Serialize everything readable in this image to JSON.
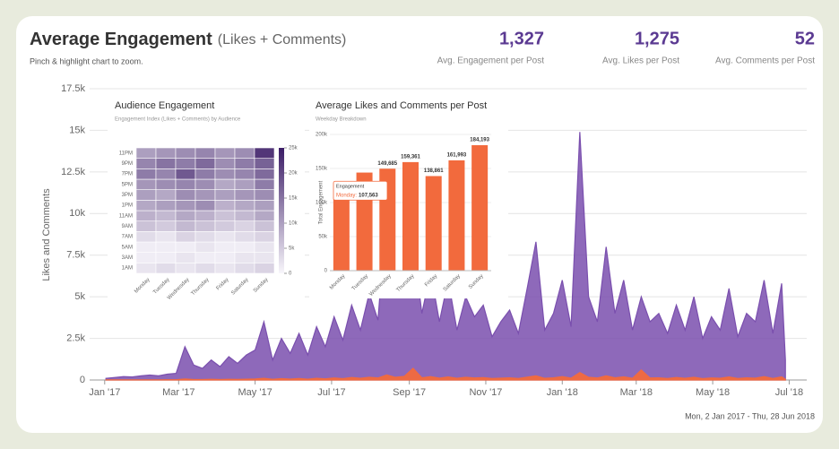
{
  "header": {
    "title": "Average Engagement",
    "title_note": "(Likes + Comments)",
    "subtitle": "Pinch & highlight chart to zoom."
  },
  "stats": [
    {
      "value": "1,327",
      "label": "Avg. Engagement per Post"
    },
    {
      "value": "1,275",
      "label": "Avg. Likes per Post"
    },
    {
      "value": "52",
      "label": "Avg. Comments per Post"
    }
  ],
  "footer": "Mon, 2 Jan 2017 - Thu, 28 Jun 2018",
  "chart_data": [
    {
      "type": "area",
      "ylabel": "Likes and Comments",
      "grid": true,
      "x": [
        "2017-01-02",
        "2017-01-09",
        "2017-01-16",
        "2017-01-23",
        "2017-01-30",
        "2017-02-06",
        "2017-02-13",
        "2017-02-20",
        "2017-02-27",
        "2017-03-06",
        "2017-03-13",
        "2017-03-20",
        "2017-03-27",
        "2017-04-03",
        "2017-04-10",
        "2017-04-17",
        "2017-04-24",
        "2017-05-01",
        "2017-05-08",
        "2017-05-15",
        "2017-05-22",
        "2017-05-29",
        "2017-06-05",
        "2017-06-12",
        "2017-06-19",
        "2017-06-26",
        "2017-07-03",
        "2017-07-10",
        "2017-07-17",
        "2017-07-24",
        "2017-07-31",
        "2017-08-07",
        "2017-08-14",
        "2017-08-21",
        "2017-08-28",
        "2017-09-04",
        "2017-09-11",
        "2017-09-18",
        "2017-09-25",
        "2017-10-02",
        "2017-10-09",
        "2017-10-16",
        "2017-10-23",
        "2017-10-30",
        "2017-11-06",
        "2017-11-13",
        "2017-11-20",
        "2017-11-27",
        "2017-12-04",
        "2017-12-11",
        "2017-12-18",
        "2017-12-25",
        "2018-01-01",
        "2018-01-08",
        "2018-01-15",
        "2018-01-22",
        "2018-01-29",
        "2018-02-05",
        "2018-02-12",
        "2018-02-19",
        "2018-02-26",
        "2018-03-05",
        "2018-03-12",
        "2018-03-19",
        "2018-03-26",
        "2018-04-02",
        "2018-04-09",
        "2018-04-16",
        "2018-04-23",
        "2018-04-30",
        "2018-05-07",
        "2018-05-14",
        "2018-05-21",
        "2018-05-28",
        "2018-06-04",
        "2018-06-11",
        "2018-06-18",
        "2018-06-25",
        "2018-06-28"
      ],
      "series": [
        {
          "color": "#7a4fae",
          "values": [
            100,
            150,
            200,
            180,
            250,
            300,
            250,
            350,
            400,
            2000,
            900,
            700,
            1200,
            800,
            1400,
            1000,
            1500,
            1800,
            3500,
            1200,
            2500,
            1600,
            2800,
            1500,
            3200,
            2000,
            3800,
            2400,
            4500,
            3000,
            5200,
            3600,
            10400,
            5000,
            7000,
            8400,
            4000,
            6500,
            3500,
            6000,
            3000,
            5000,
            3800,
            4500,
            2600,
            3500,
            4200,
            2800,
            5500,
            8300,
            3000,
            4000,
            6000,
            3200,
            14900,
            5000,
            3500,
            8000,
            4000,
            6000,
            3000,
            5000,
            3500,
            4000,
            2800,
            4500,
            3000,
            5000,
            2500,
            3800,
            3000,
            5500,
            2600,
            4000,
            3500,
            6000,
            2800,
            5800,
            1200
          ]
        },
        {
          "color": "#f26a3d",
          "values": [
            5,
            5,
            8,
            8,
            10,
            10,
            10,
            12,
            15,
            60,
            30,
            25,
            40,
            30,
            45,
            35,
            50,
            60,
            100,
            40,
            80,
            55,
            90,
            50,
            100,
            70,
            120,
            80,
            150,
            100,
            160,
            120,
            300,
            160,
            220,
            700,
            130,
            200,
            110,
            180,
            100,
            160,
            120,
            140,
            90,
            110,
            130,
            90,
            170,
            250,
            100,
            130,
            200,
            110,
            450,
            160,
            120,
            250,
            130,
            190,
            100,
            600,
            120,
            130,
            90,
            150,
            100,
            160,
            80,
            120,
            100,
            180,
            90,
            130,
            110,
            200,
            90,
            190,
            40
          ]
        }
      ],
      "xlim": [
        "2016-12-20",
        "2018-07-15"
      ],
      "xticks": [
        {
          "value": "2017-01-01",
          "label": "Jan '17"
        },
        {
          "value": "2017-03-01",
          "label": "Mar '17"
        },
        {
          "value": "2017-05-01",
          "label": "May '17"
        },
        {
          "value": "2017-07-01",
          "label": "Jul '17"
        },
        {
          "value": "2017-09-01",
          "label": "Sep '17"
        },
        {
          "value": "2017-11-01",
          "label": "Nov '17"
        },
        {
          "value": "2018-01-01",
          "label": "Jan '18"
        },
        {
          "value": "2018-03-01",
          "label": "Mar '18"
        },
        {
          "value": "2018-05-01",
          "label": "May '18"
        },
        {
          "value": "2018-07-01",
          "label": "Jul '18"
        }
      ],
      "ylim": [
        0,
        17500
      ],
      "yticks": [
        0,
        {
          "value": 2500,
          "label": "2.5k"
        },
        {
          "value": 5000,
          "label": "5k"
        },
        {
          "value": 7500,
          "label": "7.5k"
        },
        {
          "value": 10000,
          "label": "10k"
        },
        {
          "value": 12500,
          "label": "12.5k"
        },
        {
          "value": 15000,
          "label": "15k"
        },
        {
          "value": 17500,
          "label": "17.5k"
        }
      ]
    },
    {
      "type": "heatmap",
      "title": "Audience Engagement",
      "subtitle": "Engagement Index (Likes + Comments) by Audience",
      "categories": [
        "Monday",
        "Tuesday",
        "Wednesday",
        "Thursday",
        "Friday",
        "Saturday",
        "Sunday"
      ],
      "rows": [
        "1AM",
        "3AM",
        "5AM",
        "7AM",
        "9AM",
        "11AM",
        "1PM",
        "3PM",
        "5PM",
        "7PM",
        "9PM",
        "11PM"
      ],
      "values": [
        [
          2000,
          3000,
          2000,
          3000,
          2000,
          3000,
          4000
        ],
        [
          1000,
          1000,
          2000,
          1000,
          1000,
          2000,
          2000
        ],
        [
          1000,
          1000,
          1000,
          2000,
          1000,
          1000,
          2000
        ],
        [
          3000,
          2000,
          4000,
          3000,
          2000,
          3000,
          4000
        ],
        [
          6000,
          5000,
          7000,
          6000,
          5000,
          4000,
          6000
        ],
        [
          8000,
          7000,
          9000,
          8000,
          6000,
          7000,
          9000
        ],
        [
          9000,
          10000,
          11000,
          12000,
          8000,
          9000,
          10000
        ],
        [
          10000,
          9000,
          12000,
          11000,
          10000,
          11000,
          12000
        ],
        [
          11000,
          12000,
          13000,
          12000,
          9000,
          10000,
          14000
        ],
        [
          14000,
          13000,
          18000,
          14000,
          12000,
          13000,
          16000
        ],
        [
          13000,
          15000,
          14000,
          16000,
          12000,
          14000,
          17000
        ],
        [
          10000,
          11000,
          12000,
          13000,
          11000,
          12000,
          22000
        ]
      ],
      "colors": [
        "#f8f6fb",
        "#3b1c66"
      ],
      "clim": [
        0,
        25000
      ],
      "cticks": [
        0,
        {
          "value": 5000,
          "label": "5k"
        },
        {
          "value": 10000,
          "label": "10k"
        },
        {
          "value": 15000,
          "label": "15k"
        },
        {
          "value": 20000,
          "label": "20k"
        },
        {
          "value": 25000,
          "label": "25k"
        }
      ]
    },
    {
      "type": "bar",
      "title": "Average Likes and Comments per Post",
      "subtitle": "Weekday Breakdown",
      "ylabel": "Total Engagement",
      "categories": [
        "Monday",
        "Tuesday",
        "Wednesday",
        "Thursday",
        "Friday",
        "Saturday",
        "Sunday"
      ],
      "values": [
        107563,
        144000,
        149685,
        159361,
        138861,
        161993,
        184193
      ],
      "value_labels": [
        "107,563",
        null,
        "149,685",
        "159,361",
        "138,861",
        "161,993",
        "184,193"
      ],
      "color": "#f26a3d",
      "grid": true,
      "tooltip": {
        "title": "Engagement",
        "label": "Monday:"
      },
      "ylim": [
        0,
        200000
      ],
      "yticks": [
        0,
        {
          "value": 50000,
          "label": "50k"
        },
        {
          "value": 100000,
          "label": "100k"
        },
        {
          "value": 150000,
          "label": "150k"
        },
        {
          "value": 200000,
          "label": "200k"
        }
      ]
    }
  ]
}
